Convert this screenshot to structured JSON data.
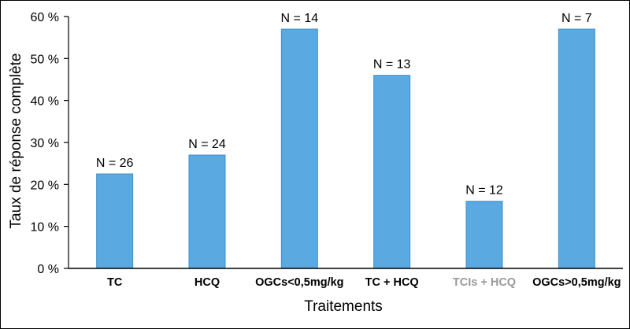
{
  "chart_data": {
    "type": "bar",
    "title": "",
    "xlabel": "Traitements",
    "ylabel": "Taux de réponse complète",
    "ylim": [
      0,
      60
    ],
    "y_ticks": [
      "0 %",
      "10 %",
      "20 %",
      "30 %",
      "40 %",
      "50 %",
      "60 %"
    ],
    "y_tick_values": [
      0,
      10,
      20,
      30,
      40,
      50,
      60
    ],
    "grid": false,
    "categories": [
      "TC",
      "HCQ",
      "OGCs<0,5mg/kg",
      "TC + HCQ",
      "TCIs + HCQ",
      "OGCs>0,5mg/kg"
    ],
    "values": [
      22.5,
      27,
      57,
      46,
      16,
      57
    ],
    "data_labels": [
      "N = 26",
      "N = 24",
      "N = 14",
      "N = 13",
      "N = 12",
      "N = 7"
    ],
    "category_label_colors": [
      "#000000",
      "#000000",
      "#000000",
      "#000000",
      "#9a9a9a",
      "#000000"
    ],
    "bar_color": "#5aaae1",
    "bar_edge_color": "#3f8fc9",
    "axis_color": "#000000"
  }
}
